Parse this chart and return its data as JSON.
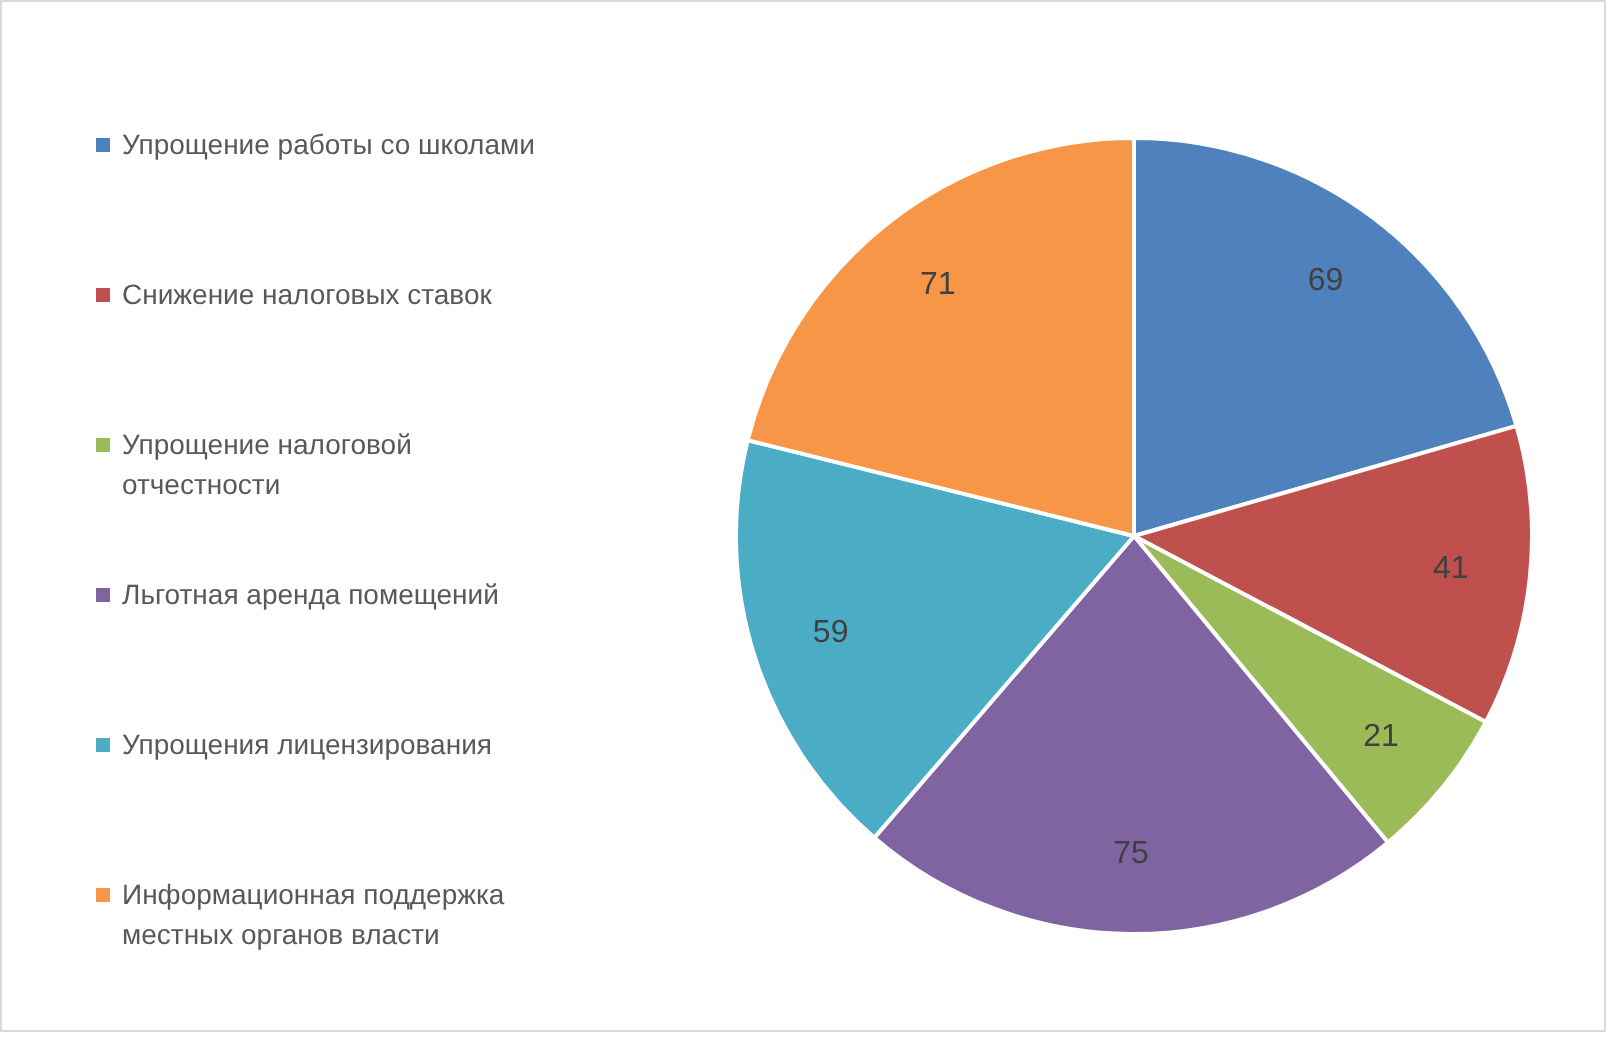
{
  "chart_data": {
    "type": "pie",
    "categories": [
      "Упрощение работы со школами",
      "Снижение налоговых ставок",
      "Упрощение налоговой отчестности",
      "Льготная аренда помещений",
      "Упрощения лицензирования",
      "Информационная поддержка местных органов власти"
    ],
    "values": [
      69,
      41,
      21,
      75,
      59,
      71
    ],
    "colors": [
      "#4f81bd",
      "#c0504d",
      "#9bbb59",
      "#8064a2",
      "#4bacc6",
      "#f79646"
    ],
    "data_labels": true,
    "legend": "left"
  }
}
